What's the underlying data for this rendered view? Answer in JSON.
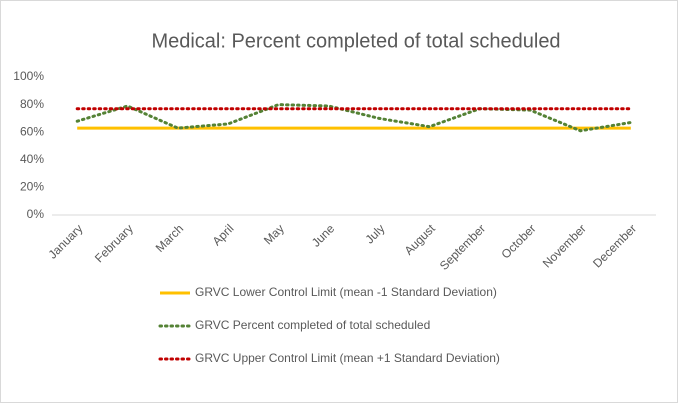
{
  "chart_data": {
    "type": "line",
    "title": "Medical: Percent completed of total scheduled",
    "categories": [
      "January",
      "February",
      "March",
      "April",
      "May",
      "June",
      "July",
      "August",
      "September",
      "October",
      "November",
      "December"
    ],
    "series": [
      {
        "name": "GRVC Lower Control Limit (mean -1 Standard Deviation)",
        "color": "#ffc000",
        "style": "solid",
        "values": [
          63,
          63,
          63,
          63,
          63,
          63,
          63,
          63,
          63,
          63,
          63,
          63
        ]
      },
      {
        "name": "GRVC Percent completed of total scheduled",
        "color": "#548235",
        "style": "dotted",
        "values": [
          68,
          79,
          63,
          66,
          80,
          79,
          70,
          64,
          77,
          76,
          61,
          67
        ]
      },
      {
        "name": "GRVC Upper Control Limit (mean +1 Standard Deviation)",
        "color": "#c00000",
        "style": "dotted",
        "values": [
          77,
          77,
          77,
          77,
          77,
          77,
          77,
          77,
          77,
          77,
          77,
          77
        ]
      }
    ],
    "ylim": [
      0,
      100
    ],
    "yticks": [
      {
        "value": 0,
        "label": "0%"
      },
      {
        "value": 20,
        "label": "20%"
      },
      {
        "value": 40,
        "label": "40%"
      },
      {
        "value": 60,
        "label": "60%"
      },
      {
        "value": 80,
        "label": "80%"
      },
      {
        "value": 100,
        "label": "100%"
      }
    ],
    "grid": false
  }
}
